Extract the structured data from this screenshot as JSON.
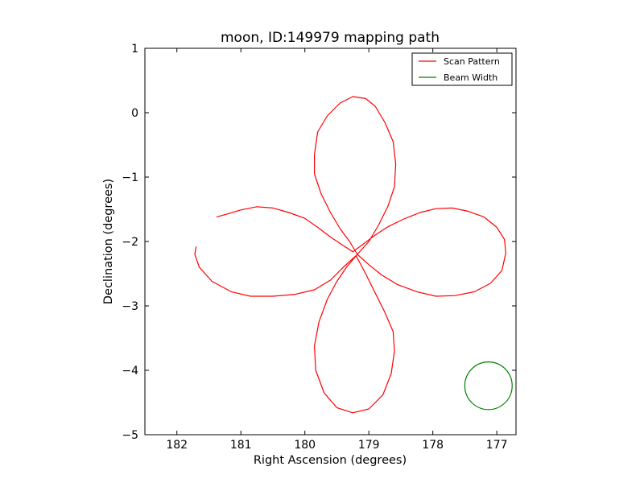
{
  "chart_data": {
    "type": "line",
    "title": "moon, ID:149979 mapping path",
    "xlabel": "Right Ascension (degrees)",
    "ylabel": "Declination (degrees)",
    "xlim": [
      182.5,
      176.7
    ],
    "ylim": [
      -5,
      1
    ],
    "xticks": [
      182,
      181,
      180,
      179,
      178,
      177
    ],
    "xtick_labels": [
      "182",
      "181",
      "180",
      "179",
      "178",
      "177"
    ],
    "yticks": [
      1,
      0,
      -1,
      -2,
      -3,
      -4,
      -5
    ],
    "ytick_labels": [
      "1",
      "0",
      "−1",
      "−2",
      "−3",
      "−4",
      "−5"
    ],
    "grid": false,
    "legend": {
      "position": "top-right",
      "entries": [
        {
          "label": "Scan Pattern",
          "color": "#ff0000"
        },
        {
          "label": "Beam Width",
          "color": "#008000"
        }
      ]
    },
    "series": [
      {
        "name": "Scan Pattern",
        "color": "#ff0000",
        "points": [
          [
            181.38,
            -1.62
          ],
          [
            181.2,
            -1.57
          ],
          [
            181.0,
            -1.51
          ],
          [
            180.75,
            -1.46
          ],
          [
            180.5,
            -1.48
          ],
          [
            180.25,
            -1.55
          ],
          [
            180.0,
            -1.64
          ],
          [
            179.8,
            -1.78
          ],
          [
            179.6,
            -1.93
          ],
          [
            179.42,
            -2.05
          ],
          [
            179.25,
            -2.16
          ],
          [
            179.1,
            -2.05
          ],
          [
            178.9,
            -1.9
          ],
          [
            178.7,
            -1.77
          ],
          [
            178.45,
            -1.65
          ],
          [
            178.2,
            -1.55
          ],
          [
            177.95,
            -1.49
          ],
          [
            177.7,
            -1.48
          ],
          [
            177.45,
            -1.53
          ],
          [
            177.2,
            -1.62
          ],
          [
            177.0,
            -1.78
          ],
          [
            176.88,
            -1.97
          ],
          [
            176.86,
            -2.18
          ],
          [
            176.92,
            -2.45
          ],
          [
            177.1,
            -2.65
          ],
          [
            177.35,
            -2.78
          ],
          [
            177.65,
            -2.84
          ],
          [
            177.95,
            -2.85
          ],
          [
            178.25,
            -2.78
          ],
          [
            178.55,
            -2.67
          ],
          [
            178.8,
            -2.52
          ],
          [
            179.0,
            -2.36
          ],
          [
            179.18,
            -2.2
          ],
          [
            179.3,
            -2.0
          ],
          [
            179.45,
            -1.8
          ],
          [
            179.6,
            -1.55
          ],
          [
            179.75,
            -1.25
          ],
          [
            179.85,
            -0.95
          ],
          [
            179.85,
            -0.65
          ],
          [
            179.8,
            -0.3
          ],
          [
            179.65,
            -0.05
          ],
          [
            179.45,
            0.15
          ],
          [
            179.25,
            0.25
          ],
          [
            179.05,
            0.22
          ],
          [
            178.9,
            0.1
          ],
          [
            178.75,
            -0.15
          ],
          [
            178.62,
            -0.45
          ],
          [
            178.58,
            -0.8
          ],
          [
            178.6,
            -1.15
          ],
          [
            178.7,
            -1.45
          ],
          [
            178.85,
            -1.75
          ],
          [
            179.0,
            -2.0
          ],
          [
            179.18,
            -2.2
          ],
          [
            179.35,
            -2.4
          ],
          [
            179.5,
            -2.62
          ],
          [
            179.65,
            -2.9
          ],
          [
            179.78,
            -3.25
          ],
          [
            179.85,
            -3.62
          ],
          [
            179.83,
            -4.0
          ],
          [
            179.7,
            -4.35
          ],
          [
            179.5,
            -4.58
          ],
          [
            179.25,
            -4.66
          ],
          [
            179.0,
            -4.6
          ],
          [
            178.78,
            -4.38
          ],
          [
            178.65,
            -4.05
          ],
          [
            178.6,
            -3.7
          ],
          [
            178.62,
            -3.4
          ],
          [
            178.75,
            -3.1
          ],
          [
            178.9,
            -2.8
          ],
          [
            179.05,
            -2.5
          ],
          [
            179.2,
            -2.22
          ],
          [
            179.4,
            -2.4
          ],
          [
            179.6,
            -2.6
          ],
          [
            179.85,
            -2.75
          ],
          [
            180.15,
            -2.82
          ],
          [
            180.5,
            -2.85
          ],
          [
            180.85,
            -2.85
          ],
          [
            181.15,
            -2.78
          ],
          [
            181.45,
            -2.62
          ],
          [
            181.65,
            -2.4
          ],
          [
            181.72,
            -2.2
          ],
          [
            181.7,
            -2.08
          ]
        ]
      },
      {
        "name": "Beam Width",
        "color": "#008000",
        "shape": "circle",
        "center": [
          177.13,
          -4.24
        ],
        "radius": 0.37
      }
    ]
  }
}
